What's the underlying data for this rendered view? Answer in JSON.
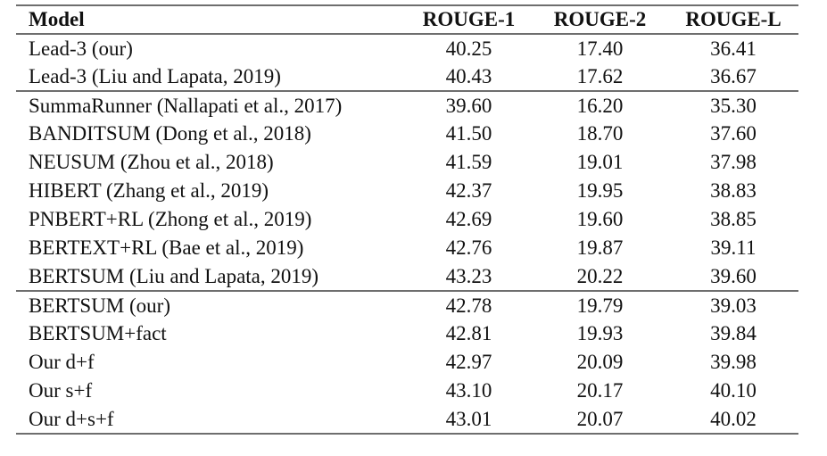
{
  "page": {
    "background": "#ffffff",
    "text_color": "#111111",
    "rule_color": "#6e6e6e"
  },
  "table": {
    "columns": [
      "Model",
      "ROUGE-1",
      "ROUGE-2",
      "ROUGE-L"
    ],
    "sections": [
      [
        [
          "Lead-3 (our)",
          "40.25",
          "17.40",
          "36.41"
        ],
        [
          "Lead-3 (Liu and Lapata, 2019)",
          "40.43",
          "17.62",
          "36.67"
        ]
      ],
      [
        [
          "SummaRunner (Nallapati et al., 2017)",
          "39.60",
          "16.20",
          "35.30"
        ],
        [
          "BANDITSUM (Dong et al., 2018)",
          "41.50",
          "18.70",
          "37.60"
        ],
        [
          "NEUSUM (Zhou et al., 2018)",
          "41.59",
          "19.01",
          "37.98"
        ],
        [
          "HIBERT (Zhang et al., 2019)",
          "42.37",
          "19.95",
          "38.83"
        ],
        [
          "PNBERT+RL (Zhong et al., 2019)",
          "42.69",
          "19.60",
          "38.85"
        ],
        [
          "BERTEXT+RL (Bae et al., 2019)",
          "42.76",
          "19.87",
          "39.11"
        ],
        [
          "BERTSUM (Liu and Lapata, 2019)",
          "43.23",
          "20.22",
          "39.60"
        ]
      ],
      [
        [
          "BERTSUM (our)",
          "42.78",
          "19.79",
          "39.03"
        ],
        [
          "BERTSUM+fact",
          "42.81",
          "19.93",
          "39.84"
        ],
        [
          "Our d+f",
          "42.97",
          "20.09",
          "39.98"
        ],
        [
          "Our s+f",
          "43.10",
          "20.17",
          "40.10"
        ],
        [
          "Our d+s+f",
          "43.01",
          "20.07",
          "40.02"
        ]
      ]
    ]
  }
}
